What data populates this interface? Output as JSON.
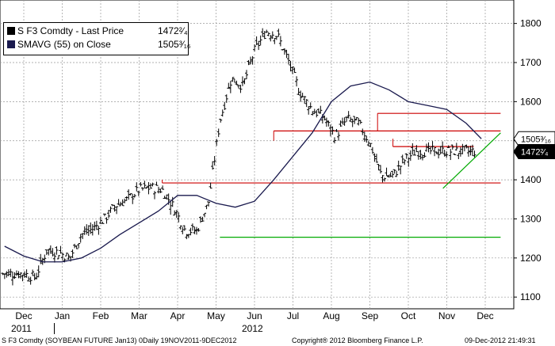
{
  "legend": {
    "last_price_label": "S F3 Comdty - Last Price",
    "last_price_value": "1472²⁄₄",
    "sma_label": "SMAVG (55) on Close",
    "sma_value": "1505³⁄₁₆"
  },
  "footer": {
    "left": "S F3 Comdty (SOYBEAN FUTURE   Jan13) 0Daily 19NOV2011-9DEC2012",
    "center": "Copyright® 2012 Bloomberg Finance L.P.",
    "right": "09-Dec-2012 21:49:31"
  },
  "colors": {
    "price_bars": "#000000",
    "sma_line": "#1a1a4e",
    "resistance_lines": "#cc0000",
    "support_lines": "#00aa00",
    "last_price_tag_bg": "#000000",
    "sma_tag_bg": "#ffffff"
  },
  "chart_data": {
    "type": "line",
    "title": "",
    "xlabel": "",
    "ylabel": "",
    "ylim": [
      1070,
      1860
    ],
    "y_ticks": [
      1100,
      1200,
      1300,
      1400,
      1500,
      1600,
      1700,
      1800
    ],
    "x_ticks": [
      "Dec",
      "Jan",
      "Feb",
      "Mar",
      "Apr",
      "May",
      "Jun",
      "Jul",
      "Aug",
      "Sep",
      "Oct",
      "Nov",
      "Dec"
    ],
    "x_year_labels": [
      {
        "label": "2011",
        "month_index": 0
      },
      {
        "label": "2012",
        "month_index": 6
      }
    ],
    "grid": true,
    "series": [
      {
        "name": "S F3 Comdty - Last Price",
        "style": "bar",
        "x": [
          0,
          0.3,
          0.6,
          0.9,
          1.2,
          1.5,
          1.8,
          2.1,
          2.4,
          2.7,
          3,
          3.3,
          3.6,
          3.9,
          4.2,
          4.5,
          4.8,
          5.1,
          5.4,
          5.7,
          6,
          6.3,
          6.6,
          6.9,
          7.2,
          7.5,
          7.8,
          8.1,
          8.4,
          8.7,
          9,
          9.3,
          9.6,
          9.9,
          10.2,
          10.5,
          10.8,
          11.1,
          11.4,
          11.7,
          12.0
        ],
        "values": [
          1160,
          1150,
          1220,
          1215,
          1200,
          1260,
          1275,
          1300,
          1335,
          1350,
          1375,
          1380,
          1375,
          1330,
          1270,
          1270,
          1340,
          1550,
          1660,
          1640,
          1730,
          1780,
          1770,
          1700,
          1620,
          1580,
          1560,
          1510,
          1555,
          1545,
          1495,
          1410,
          1410,
          1450,
          1473,
          1473,
          1473,
          1473,
          1473,
          1473,
          1473
        ]
      },
      {
        "name": "SMAVG (55) on Close",
        "style": "line",
        "x": [
          -0.5,
          0,
          0.5,
          1,
          1.5,
          2,
          2.5,
          3,
          3.5,
          4,
          4.5,
          5,
          5.5,
          6,
          6.5,
          7,
          7.5,
          8,
          8.5,
          9,
          9.5,
          10,
          10.5,
          11,
          11.5,
          11.9
        ],
        "values": [
          1230,
          1205,
          1190,
          1190,
          1200,
          1225,
          1260,
          1290,
          1320,
          1360,
          1360,
          1340,
          1330,
          1345,
          1400,
          1460,
          1520,
          1600,
          1640,
          1650,
          1630,
          1600,
          1590,
          1580,
          1545,
          1505
        ]
      }
    ],
    "horizontal_lines": [
      {
        "value": 1570,
        "color": "red",
        "x_from": 9.2,
        "x_to": 12.4
      },
      {
        "value": 1525,
        "color": "red",
        "x_from": 6.5,
        "x_to": 12.4
      },
      {
        "value": 1485,
        "color": "red",
        "x_from": 9.6,
        "x_to": 11.7
      },
      {
        "value": 1392,
        "color": "red",
        "x_from": 3.6,
        "x_to": 12.4
      },
      {
        "value": 1253,
        "color": "green",
        "x_from": 5.1,
        "x_to": 12.4
      }
    ],
    "trend_lines": [
      {
        "x_from": 10.9,
        "y_from": 1378,
        "x_to": 12.4,
        "y_to": 1520,
        "color": "green"
      }
    ],
    "last_price_tag": "1472²⁄₄",
    "sma_tag": "1505³⁄₁₆"
  }
}
